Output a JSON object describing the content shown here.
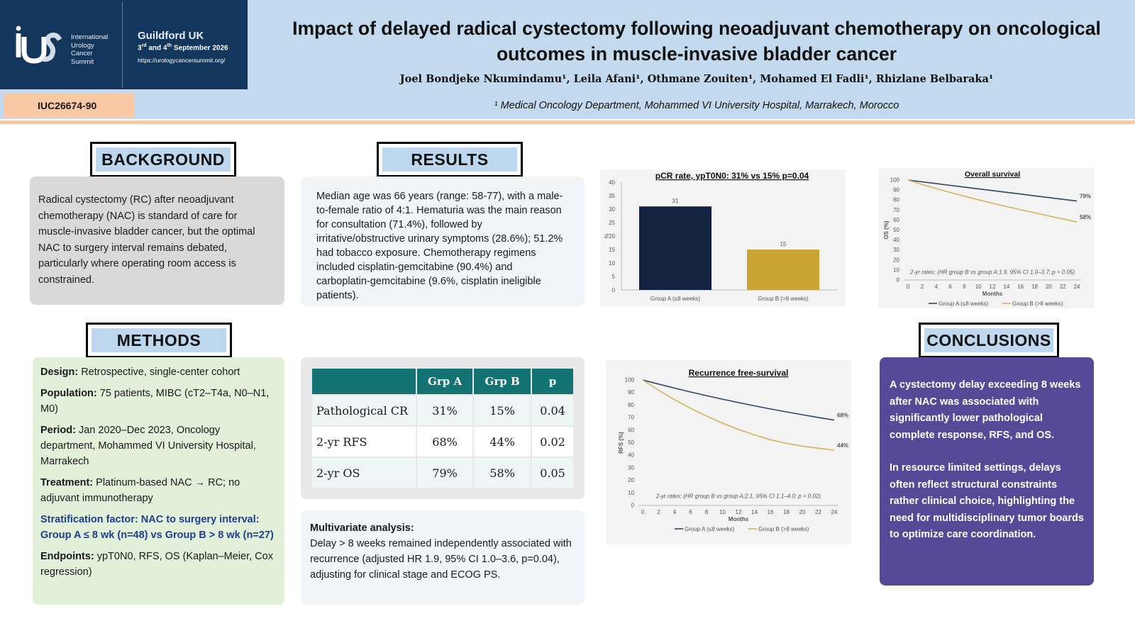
{
  "logo": {
    "org_lines": [
      "International",
      "Urology",
      "Cancer",
      "Summit"
    ],
    "city": "Guildford UK",
    "dates_1": "3",
    "dates_1_sup": "rd",
    "dates_2": " and 4",
    "dates_2_sup": "th",
    "dates_3": " September 2026",
    "url": "https://urologycancersummit.org/"
  },
  "abstract_id": "IUC26674-90",
  "title": "Impact of delayed radical cystectomy following neoadjuvant chemotherapy on oncological outcomes in muscle-invasive bladder cancer",
  "authors": "Joel Bondjeke Nkumindamu¹, Leila Afani¹, Othmane Zouiten¹, Mohamed El Fadli¹, Rhizlane Belbaraka¹",
  "affiliation": "¹ Medical Oncology Department, Mohammed VI University Hospital, Marrakech, Morocco",
  "background": {
    "heading": "BACKGROUND",
    "text": "Radical cystectomy (RC) after neoadjuvant chemotherapy (NAC) is standard of care for muscle-invasive bladder cancer, but the optimal NAC to surgery interval remains debated, particularly where operating room access is constrained."
  },
  "methods": {
    "heading": "METHODS",
    "items": [
      {
        "label": "Design:",
        "text": " Retrospective, single-center cohort"
      },
      {
        "label": "Population:",
        "text": " 75 patients, MIBC (cT2–T4a, N0–N1, M0)"
      },
      {
        "label": "Period:",
        "text": " Jan 2020–Dec 2023, Oncology department, Mohammed VI University Hospital, Marrakech"
      },
      {
        "label": "Treatment:",
        "text": " Platinum-based NAC → RC; no adjuvant immunotherapy"
      }
    ],
    "stratification": "Stratification factor: NAC to surgery interval: Group A ≤ 8 wk (n=48) vs Group B > 8 wk (n=27)",
    "endpoints_label": "Endpoints:",
    "endpoints_text": " ypT0N0, RFS, OS (Kaplan–Meier, Cox regression)"
  },
  "results": {
    "heading": "RESULTS",
    "text": "Median age was 66 years (range: 58-77), with a male-to-female ratio of 4:1. Hematuria was the main reason for consultation (71.4%), followed by irritative/obstructive urinary symptoms (28.6%); 51.2% had tobacco exposure. Chemotherapy regimens included cisplatin-gemcitabine (90.4%) and carboplatin-gemcitabine (9.6%, cisplatin ineligible patients).",
    "table": {
      "headers": [
        "",
        "Grp A",
        "Grp B",
        "p"
      ],
      "rows": [
        [
          "Pathological CR",
          "31%",
          "15%",
          "0.04"
        ],
        [
          "2-yr RFS",
          "68%",
          "44%",
          "0.02"
        ],
        [
          "2-yr OS",
          "79%",
          "58%",
          "0.05"
        ]
      ]
    },
    "multivariate_label": "Multivariate analysis:",
    "multivariate_text": "Delay > 8 weeks remained independently associated with recurrence (adjusted HR 1.9, 95% CI 1.0–3.6, p=0.04), adjusting for clinical stage and ECOG PS."
  },
  "conclusions": {
    "heading": "CONCLUSIONS",
    "paragraphs": [
      "A cystectomy delay exceeding 8 weeks after NAC was associated with significantly lower pathological complete response, RFS, and OS.",
      "In resource limited settings, delays often reflect structural constraints rather clinical choice, highlighting the need for multidisciplinary tumor boards to optimize care coordination."
    ]
  },
  "colors": {
    "group_a": "#13233f",
    "group_b": "#c9a435",
    "line_a": "#34435f",
    "line_b": "#d4b45a"
  },
  "chart_data": [
    {
      "type": "bar",
      "title": "pCR rate, ypT0N0: 31% vs 15% p=0.04",
      "categories": [
        "Group A (≤8 weeks)",
        "Group B (>8 weeks)"
      ],
      "values": [
        31,
        15
      ],
      "value_labels": [
        "31",
        "15"
      ],
      "ylabel": "%",
      "ylim": [
        0,
        40
      ],
      "yticks": [
        "0",
        "5",
        "10",
        "15",
        "20",
        "25",
        "30",
        "35",
        "40"
      ]
    },
    {
      "type": "line",
      "title": "Overall survival",
      "ylabel": "OS (%)",
      "xlabel": "Months",
      "x": [
        0,
        2,
        4,
        6,
        8,
        10,
        12,
        14,
        16,
        18,
        20,
        22,
        24
      ],
      "xticks": [
        "0",
        "2",
        "4",
        "6",
        "8",
        "10",
        "12",
        "14",
        "16",
        "18",
        "20",
        "22",
        "24"
      ],
      "yticks": [
        "0",
        "10",
        "20",
        "30",
        "40",
        "50",
        "60",
        "70",
        "80",
        "90",
        "100"
      ],
      "ylim": [
        0,
        100
      ],
      "xlim": [
        0,
        24
      ],
      "series": [
        {
          "name": "Group A (≤8 weeks)",
          "values": [
            100,
            98.2,
            96.5,
            94.7,
            93.0,
            91.2,
            89.5,
            87.7,
            86.0,
            84.2,
            82.5,
            80.7,
            79
          ]
        },
        {
          "name": "Group B (>8 weeks)",
          "values": [
            100,
            95.6,
            91.5,
            87.6,
            83.9,
            80.3,
            76.8,
            73.5,
            70.3,
            67.2,
            64.2,
            61.1,
            58
          ]
        }
      ],
      "end_labels": [
        "79%",
        "58%"
      ],
      "annotation": "2-yr rates: (HR group B vs group A:1.9, 95% CI 1.0–3.7; p = 0.05)",
      "legend_position": "bottom"
    },
    {
      "type": "line",
      "title": "Recurrence free-survival",
      "ylabel": "RFS (%)",
      "xlabel": "Months",
      "x": [
        0,
        2,
        4,
        6,
        8,
        10,
        12,
        14,
        16,
        18,
        20,
        22,
        24
      ],
      "xticks": [
        "0",
        "2",
        "4",
        "6",
        "8",
        "10",
        "12",
        "14",
        "16",
        "18",
        "20",
        "22",
        "24"
      ],
      "yticks": [
        "0",
        "10",
        "20",
        "30",
        "40",
        "50",
        "60",
        "70",
        "80",
        "90",
        "100"
      ],
      "ylim": [
        0,
        100
      ],
      "xlim": [
        0,
        24
      ],
      "series": [
        {
          "name": "Group A (≤8 weeks)",
          "values": [
            100,
            96.7,
            93.5,
            90.4,
            87.5,
            84.7,
            82.0,
            79.4,
            76.9,
            74.6,
            72.3,
            70.1,
            68
          ]
        },
        {
          "name": "Group B (>8 weeks)",
          "values": [
            100,
            91.8,
            84.3,
            77.4,
            71.2,
            65.6,
            60.6,
            56.2,
            52.4,
            49.5,
            47.3,
            45.6,
            44
          ]
        }
      ],
      "end_labels": [
        "68%",
        "44%"
      ],
      "annotation": "2-yr rates: (HR group B vs group A:2.1, 95% CI 1.1–4.0; p = 0.02)",
      "legend_position": "bottom"
    }
  ]
}
